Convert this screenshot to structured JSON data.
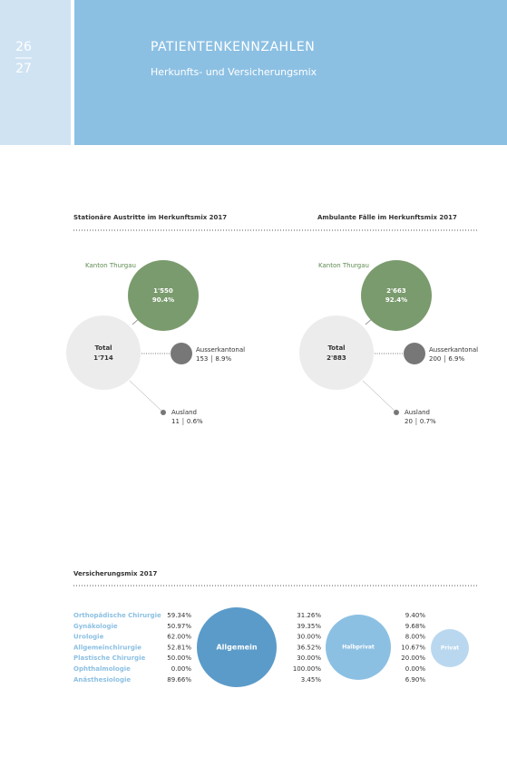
{
  "header": {
    "page_top": "26",
    "page_bottom": "27",
    "title": "PATIENTENKENNZAHLEN",
    "subtitle": "Herkunfts- und Versicherungsmix"
  },
  "diagrams": [
    {
      "title": "Stationäre Austritte im Herkunftsmix 2017",
      "total": {
        "label": "Total",
        "value": "1'714"
      },
      "main": {
        "label": "Kanton Thurgau",
        "value": "1'550",
        "percent": "90.4%"
      },
      "ausser": {
        "label": "Ausserkantonal",
        "value": "153",
        "percent": "8.9%"
      },
      "ausland": {
        "label": "Ausland",
        "value": "11",
        "percent": "0.6%"
      }
    },
    {
      "title": "Ambulante Fälle im Herkunftsmix 2017",
      "total": {
        "label": "Total",
        "value": "2'883"
      },
      "main": {
        "label": "Kanton Thurgau",
        "value": "2'663",
        "percent": "92.4%"
      },
      "ausser": {
        "label": "Ausserkantonal",
        "value": "200",
        "percent": "6.9%"
      },
      "ausland": {
        "label": "Ausland",
        "value": "20",
        "percent": "0.7%"
      }
    }
  ],
  "insurance": {
    "title": "Versicherungsmix 2017",
    "columns": [
      "Allgemein",
      "Halbprivat",
      "Privat"
    ],
    "rows": [
      {
        "name": "Orthopädische Chirurgie",
        "values": [
          "59.34%",
          "31.26%",
          "9.40%"
        ]
      },
      {
        "name": "Gynäkologie",
        "values": [
          "50.97%",
          "39.35%",
          "9.68%"
        ]
      },
      {
        "name": "Urologie",
        "values": [
          "62.00%",
          "30.00%",
          "8.00%"
        ]
      },
      {
        "name": "Allgemeinchirurgie",
        "values": [
          "52.81%",
          "36.52%",
          "10.67%"
        ]
      },
      {
        "name": "Plastische Chirurgie",
        "values": [
          "50.00%",
          "30.00%",
          "20.00%"
        ]
      },
      {
        "name": "Ophthalmologie",
        "values": [
          "0.00%",
          "100.00%",
          "0.00%"
        ]
      },
      {
        "name": "Anästhesiologie",
        "values": [
          "89.66%",
          "3.45%",
          "6.90%"
        ]
      }
    ]
  }
}
